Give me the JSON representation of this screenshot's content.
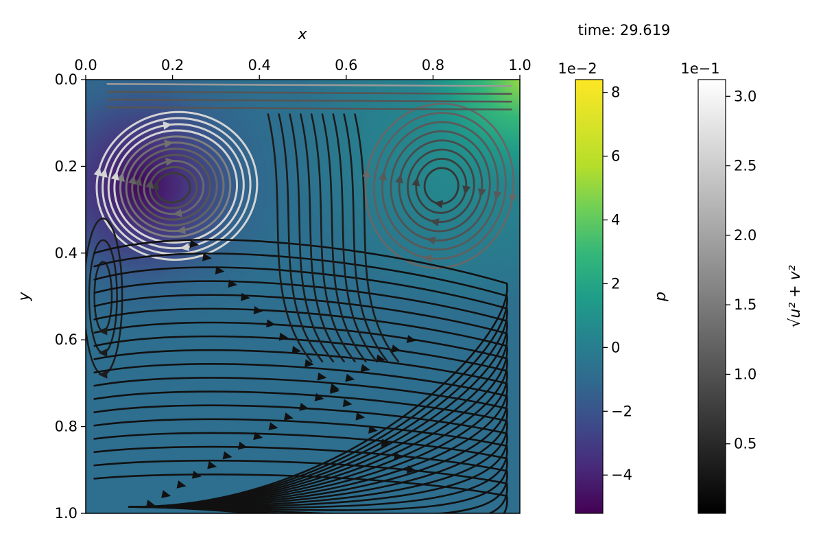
{
  "chart_data": {
    "type": "heatmap",
    "title": "",
    "time_label": "time: 29.619",
    "xlabel": "x",
    "ylabel": "y",
    "xlim": [
      0.0,
      1.0
    ],
    "ylim": [
      0.0,
      1.0
    ],
    "y_inverted": true,
    "x_axis_position": "top",
    "x_ticks": [
      "0.0",
      "0.2",
      "0.4",
      "0.6",
      "0.8",
      "1.0"
    ],
    "y_ticks": [
      "0.0",
      "0.2",
      "0.4",
      "0.6",
      "0.8",
      "1.0"
    ],
    "grid": false,
    "field": {
      "name": "p",
      "colormap": "viridis",
      "range": [
        -0.052,
        0.084
      ],
      "features": [
        {
          "kind": "minimum",
          "x": 0.2,
          "y": 0.25,
          "value": -0.05
        },
        {
          "kind": "maximum",
          "x": 0.99,
          "y": 0.01,
          "value": 0.08
        }
      ]
    },
    "vortices": [
      {
        "x": 0.2,
        "y": 0.25,
        "direction": "clockwise"
      },
      {
        "x": 0.82,
        "y": 0.245,
        "direction": "clockwise"
      },
      {
        "x": 0.04,
        "y": 0.5,
        "direction": "counterclockwise"
      }
    ],
    "colorbars": [
      {
        "label": "p",
        "scale_text": "1e−2",
        "colormap": "viridis",
        "range": [
          -5.2,
          8.4
        ],
        "ticks": [
          {
            "value": 8,
            "label": "8"
          },
          {
            "value": 6,
            "label": "6"
          },
          {
            "value": 4,
            "label": "4"
          },
          {
            "value": 2,
            "label": "2"
          },
          {
            "value": 0,
            "label": "0"
          },
          {
            "value": -2,
            "label": "−2"
          },
          {
            "value": -4,
            "label": "−4"
          }
        ]
      },
      {
        "label": "√u² + v²",
        "scale_text": "1e−1",
        "colormap": "gray",
        "range": [
          0.0,
          3.12
        ],
        "ticks": [
          {
            "value": 3.0,
            "label": "3.0"
          },
          {
            "value": 2.5,
            "label": "2.5"
          },
          {
            "value": 2.0,
            "label": "2.0"
          },
          {
            "value": 1.5,
            "label": "1.5"
          },
          {
            "value": 1.0,
            "label": "1.0"
          },
          {
            "value": 0.5,
            "label": "0.5"
          }
        ]
      }
    ]
  }
}
